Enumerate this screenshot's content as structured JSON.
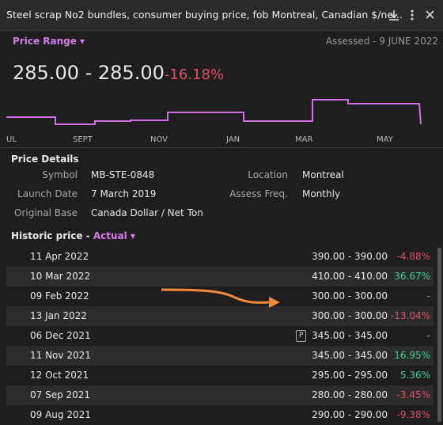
{
  "header": {
    "title": "Steel scrap No2 bundles, consumer buying price, fob Montreal, Canadian $/ne..."
  },
  "range": {
    "label": "Price Range",
    "assessed": "Assessed - 9 JUNE 2022"
  },
  "price": {
    "range": "285.00 - 285.00",
    "change": "-16.18%"
  },
  "timeline": [
    "UL",
    "SEPT",
    "NOV",
    "JAN",
    "MAR",
    "MAY"
  ],
  "details": {
    "title": "Price Details",
    "rows": [
      [
        "Symbol",
        "MB-STE-0848",
        "Location",
        "Montreal"
      ],
      [
        "Launch Date",
        "7 March 2019",
        "Assess Freq.",
        "Monthly"
      ],
      [
        "Original Base",
        "Canada Dollar / Net Ton"
      ]
    ]
  },
  "historic": {
    "title": "Historic price - ",
    "mode": "Actual"
  },
  "table": {
    "badge": "P",
    "rows": [
      [
        "11 Apr 2022",
        "390.00 - 390.00",
        "-4.88%"
      ],
      [
        "10 Mar 2022",
        "410.00 - 410.00",
        "36.67%"
      ],
      [
        "09 Feb 2022",
        "300.00 - 300.00",
        "-"
      ],
      [
        "13 Jan 2022",
        "300.00 - 300.00",
        "-13.04%"
      ],
      [
        "06 Dec 2021",
        "345.00 - 345.00",
        "-"
      ],
      [
        "11 Nov 2021",
        "345.00 - 345.00",
        "16.95%"
      ],
      [
        "12 Oct 2021",
        "295.00 - 295.00",
        "5.36%"
      ],
      [
        "07 Sep 2021",
        "280.00 - 280.00",
        "-3.45%"
      ],
      [
        "09 Aug 2021",
        "290.00 - 290.00",
        "-9.38%"
      ]
    ]
  }
}
